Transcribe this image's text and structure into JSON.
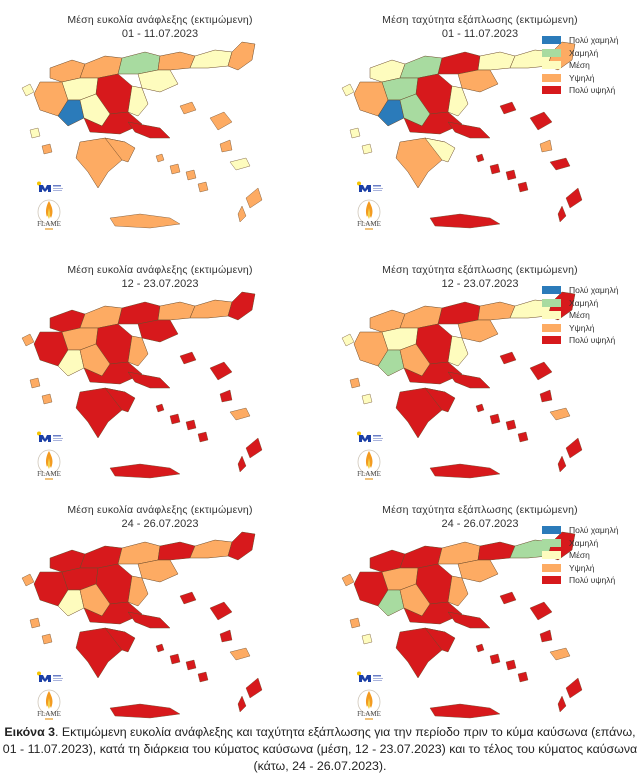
{
  "colors": {
    "very_low": "#2b7bba",
    "low": "#a8dba0",
    "medium": "#fefcbe",
    "high": "#fdab63",
    "very_high": "#d7191c"
  },
  "legend": {
    "items": [
      {
        "label": "Πολύ χαμηλή",
        "color": "#2b7bba"
      },
      {
        "label": "Χαμηλή",
        "color": "#a8dba0"
      },
      {
        "label": "Μέση",
        "color": "#fefcbe"
      },
      {
        "label": "Υψηλή",
        "color": "#fdab63"
      },
      {
        "label": "Πολύ υψηλή",
        "color": "#d7191c"
      }
    ]
  },
  "panels": [
    {
      "title": "Μέση ευκολία ανάφλεξης (εκτιμώμενη)",
      "period": "01 - 11.07.2023",
      "legend": false,
      "dominant": "high"
    },
    {
      "title": "Μέση ταχύτητα εξάπλωσης (εκτιμώμενη)",
      "period": "01 - 11.07.2023",
      "legend": true,
      "dominant": "high"
    },
    {
      "title": "Μέση ευκολία ανάφλεξης (εκτιμώμενη)",
      "period": "12 - 23.07.2023",
      "legend": false,
      "dominant": "very_high"
    },
    {
      "title": "Μέση ταχύτητα εξάπλωσης (εκτιμώμενη)",
      "period": "12 - 23.07.2023",
      "legend": true,
      "dominant": "very_high"
    },
    {
      "title": "Μέση ευκολία ανάφλεξης (εκτιμώμενη)",
      "period": "24 - 26.07.2023",
      "legend": false,
      "dominant": "very_high"
    },
    {
      "title": "Μέση ταχύτητα εξάπλωσης (εκτιμώμενη)",
      "period": "24 - 26.07.2023",
      "legend": true,
      "dominant": "very_high"
    }
  ],
  "logos": {
    "meteo_text": "meteo",
    "flame_text": "FLAME"
  },
  "caption": {
    "label": "Εικόνα 3",
    "text": ". Εκτιμώμενη ευκολία ανάφλεξης και ταχύτητα εξάπλωσης για την περίοδο πριν το κύμα καύσωνα (επάνω, 01 - 11.07.2023), κατά τη διάρκεια του κύματος καύσωνα (μέση, 12 - 23.07.2023) και το τέλος του κύματος καύσωνα (κάτω, 24 - 26.07.2023)."
  }
}
